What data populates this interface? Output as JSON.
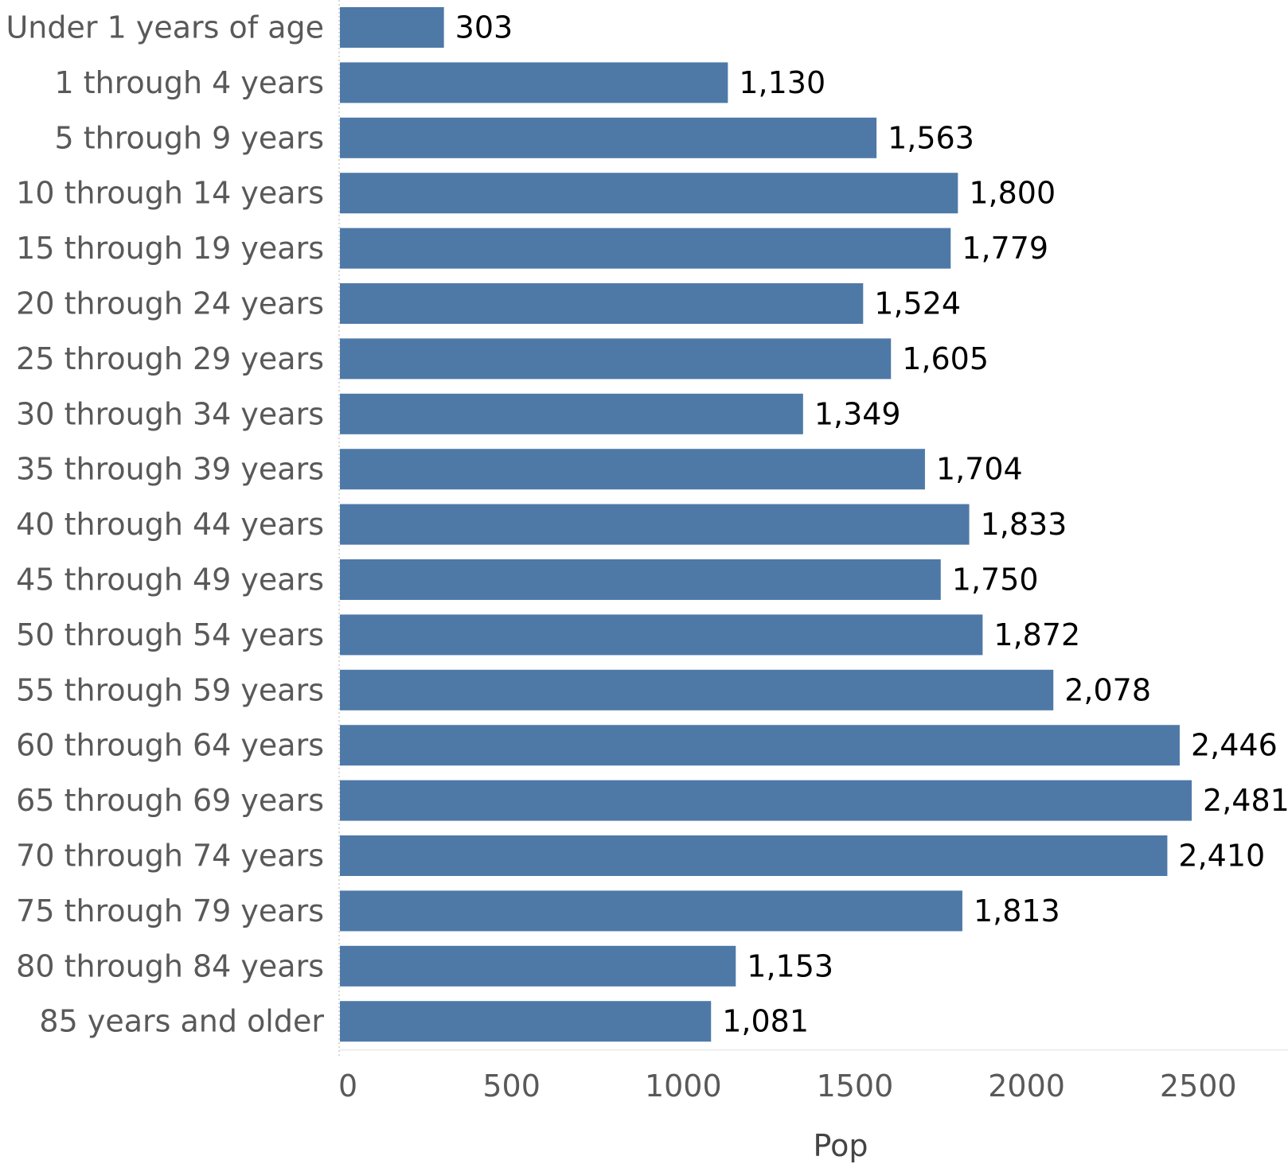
{
  "chart_data": {
    "type": "bar",
    "orientation": "horizontal",
    "categories": [
      "Under 1 years of age",
      "1 through 4 years",
      "5 through 9 years",
      "10 through 14 years",
      "15 through 19 years",
      "20 through 24 years",
      "25 through 29 years",
      "30 through 34 years",
      "35 through 39 years",
      "40 through 44 years",
      "45 through 49 years",
      "50 through 54 years",
      "55 through 59 years",
      "60 through 64 years",
      "65 through 69 years",
      "70 through 74 years",
      "75 through 79 years",
      "80 through 84 years",
      "85 years and older"
    ],
    "values": [
      303,
      1130,
      1563,
      1800,
      1779,
      1524,
      1605,
      1349,
      1704,
      1833,
      1750,
      1872,
      2078,
      2446,
      2481,
      2410,
      1813,
      1153,
      1081
    ],
    "data_labels": [
      "303",
      "1,130",
      "1,563",
      "1,800",
      "1,779",
      "1,524",
      "1,605",
      "1,349",
      "1,704",
      "1,833",
      "1,750",
      "1,872",
      "2,078",
      "2,446",
      "2,481",
      "2,410",
      "1,813",
      "1,153",
      "1,081"
    ],
    "xlabel": "Pop",
    "ylabel": "",
    "xlim": [
      0,
      2700
    ],
    "xticks": [
      "0",
      "500",
      "1000",
      "1500",
      "2000",
      "2500"
    ],
    "grid": false,
    "legend": "none",
    "bar_color": "#4e79a7"
  }
}
